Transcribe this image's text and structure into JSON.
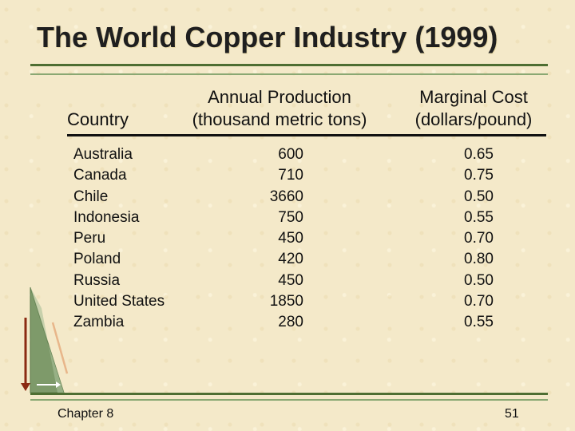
{
  "title": "The World Copper Industry (1999)",
  "table": {
    "headers": {
      "country": "Country",
      "production_line1": "Annual Production",
      "production_line2": "(thousand metric tons)",
      "cost_line1": "Marginal Cost",
      "cost_line2": "(dollars/pound)"
    },
    "rows": [
      {
        "country": "Australia",
        "production": "600",
        "cost": "0.65"
      },
      {
        "country": "Canada",
        "production": "710",
        "cost": "0.75"
      },
      {
        "country": "Chile",
        "production": "3660",
        "cost": "0.50"
      },
      {
        "country": "Indonesia",
        "production": "750",
        "cost": "0.55"
      },
      {
        "country": "Peru",
        "production": "450",
        "cost": "0.70"
      },
      {
        "country": "Poland",
        "production": "420",
        "cost": "0.80"
      },
      {
        "country": "Russia",
        "production": "450",
        "cost": "0.50"
      },
      {
        "country": "United States",
        "production": "1850",
        "cost": "0.70"
      },
      {
        "country": "Zambia",
        "production": "280",
        "cost": "0.55"
      }
    ]
  },
  "footer": {
    "chapter": "Chapter 8",
    "page": "51"
  },
  "colors": {
    "background": "#f4e9c9",
    "rule": "#4e6e32",
    "accent_triangle": "#7e9a6a",
    "arrow": "#8b2a12"
  }
}
